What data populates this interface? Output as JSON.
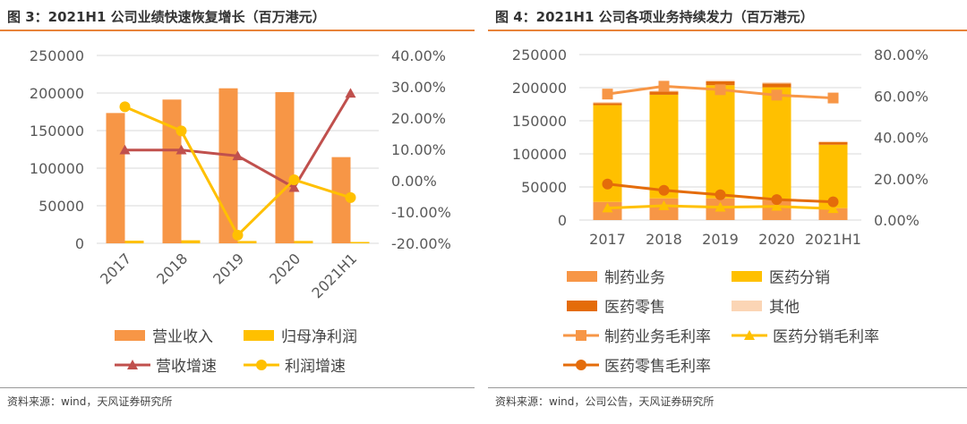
{
  "left": {
    "title": "图 3：2021H1 公司业绩快速恢复增长（百万港元）",
    "source": "资料来源：wind，天风证券研究所",
    "legend": [
      "营业收入",
      "归母净利润",
      "营收增速",
      "利润增速"
    ]
  },
  "right": {
    "title": "图 4：2021H1 公司各项业务持续发力（百万港元）",
    "source": "资料来源：wind，公司公告，天风证券研究所",
    "legend": [
      "制药业务",
      "医药分销",
      "医药零售",
      "其他",
      "制药业务毛利率",
      "医药分销毛利率",
      "医药零售毛利率"
    ]
  },
  "colors": {
    "accent_rule": "#E8833A",
    "revenue": "#F79646",
    "net_profit": "#FFC000",
    "rev_growth": "#C0504D",
    "profit_growth": "#FFC000",
    "pharma": "#F79646",
    "distribution": "#FFC000",
    "retail": "#E46C0A",
    "other": "#FBD5B5"
  },
  "chart_data": [
    {
      "type": "bar+line",
      "categories": [
        "2017",
        "2018",
        "2019",
        "2020",
        "2021H1"
      ],
      "y_left": {
        "range": [
          0,
          250000
        ],
        "ticks": [
          "0",
          "50000",
          "100000",
          "150000",
          "200000",
          "250000"
        ]
      },
      "y_right": {
        "range": [
          -20,
          40
        ],
        "ticks": [
          "-20.00%",
          "-10.00%",
          "0.00%",
          "10.00%",
          "20.00%",
          "30.00%",
          "40.00%"
        ]
      },
      "grid": true,
      "legend_position": "bottom",
      "series": [
        {
          "name": "营业收入",
          "type": "bar",
          "axis": "left",
          "values": [
            173400,
            191300,
            206300,
            201200,
            114700
          ]
        },
        {
          "name": "归母净利润",
          "type": "bar",
          "axis": "left",
          "values": [
            3500,
            4000,
            3100,
            3200,
            1800
          ]
        },
        {
          "name": "营收增速",
          "type": "line",
          "marker": "triangle",
          "axis": "right",
          "values": [
            9.8,
            9.8,
            7.9,
            -2.2,
            27.9
          ]
        },
        {
          "name": "利润增速",
          "type": "line",
          "marker": "circle",
          "axis": "right",
          "values": [
            23.6,
            15.9,
            -17.4,
            0.3,
            -5.4
          ]
        }
      ]
    },
    {
      "type": "stacked-bar+line",
      "categories": [
        "2017",
        "2018",
        "2019",
        "2020",
        "2021H1"
      ],
      "y_left": {
        "range": [
          0,
          250000
        ],
        "ticks": [
          "0",
          "50000",
          "100000",
          "150000",
          "200000",
          "250000"
        ]
      },
      "y_right": {
        "range": [
          0,
          80
        ],
        "ticks": [
          "0.00%",
          "20.00%",
          "40.00%",
          "60.00%",
          "80.00%"
        ]
      },
      "grid": true,
      "legend_position": "bottom",
      "series": [
        {
          "name": "制药业务",
          "type": "bar",
          "axis": "left",
          "values": [
            27400,
            32800,
            32800,
            30000,
            18000
          ]
        },
        {
          "name": "医药分销",
          "type": "bar",
          "axis": "left",
          "values": [
            146200,
            156500,
            170900,
            170600,
            95800
          ]
        },
        {
          "name": "医药零售",
          "type": "bar",
          "axis": "left",
          "values": [
            3100,
            4900,
            5800,
            5800,
            4000
          ]
        },
        {
          "name": "其他",
          "type": "bar",
          "axis": "left",
          "values": [
            1800,
            1400,
            1800,
            1800,
            1400
          ]
        },
        {
          "name": "制药业务毛利率",
          "type": "line",
          "marker": "square",
          "axis": "right",
          "values": [
            60.9,
            64.7,
            63.0,
            60.4,
            59.0
          ]
        },
        {
          "name": "医药分销毛利率",
          "type": "line",
          "marker": "triangle",
          "axis": "right",
          "values": [
            5.8,
            6.9,
            6.2,
            6.6,
            5.5
          ]
        },
        {
          "name": "医药零售毛利率",
          "type": "line",
          "marker": "circle",
          "axis": "right",
          "values": [
            17.4,
            14.4,
            12.2,
            9.9,
            8.8
          ]
        }
      ]
    }
  ]
}
